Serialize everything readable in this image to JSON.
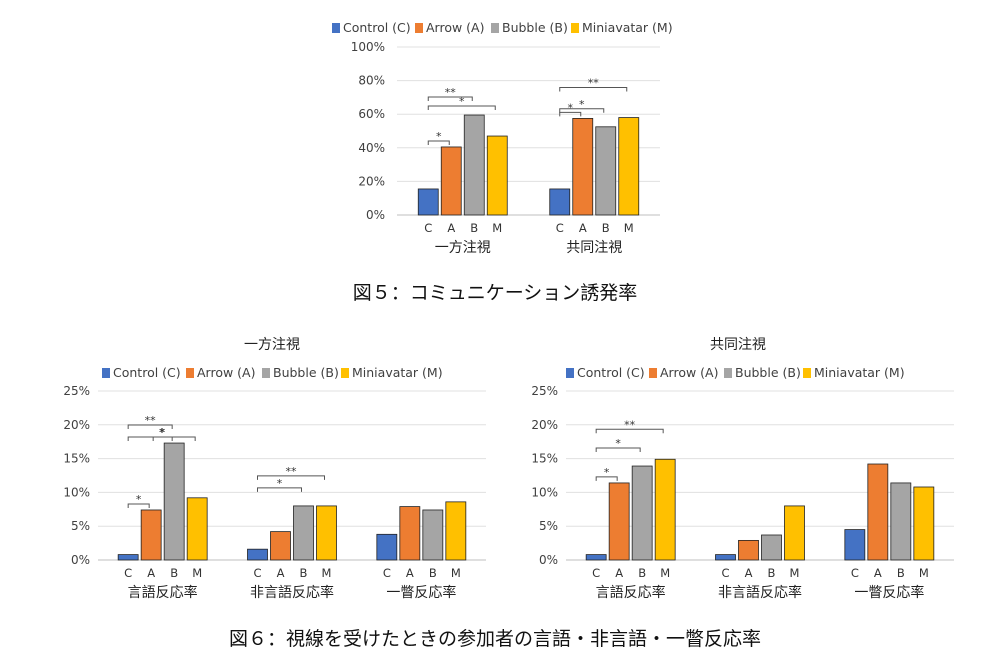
{
  "colors": {
    "C": "#4472C4",
    "A": "#ED7D31",
    "B": "#A5A5A5",
    "M": "#FFC000"
  },
  "figure5": {
    "caption": "図５：コミュニケーション誘発率",
    "chart_data": {
      "type": "bar",
      "legend": [
        "Control (C)",
        "Arrow (A)",
        "Bubble (B)",
        "Miniavatar (M)"
      ],
      "legend_position": "top",
      "group_labels": [
        "一方注視",
        "共同注視"
      ],
      "bar_labels": [
        "C",
        "A",
        "B",
        "M"
      ],
      "yticks": [
        "0%",
        "20%",
        "40%",
        "60%",
        "80%",
        "100%"
      ],
      "ylim": [
        0,
        100
      ],
      "grid": true,
      "series": [
        {
          "name": "Control (C)",
          "values": [
            15.5,
            15.5
          ]
        },
        {
          "name": "Arrow (A)",
          "values": [
            40.5,
            57.5
          ]
        },
        {
          "name": "Bubble (B)",
          "values": [
            59.5,
            52.5
          ]
        },
        {
          "name": "Miniavatar (M)",
          "values": [
            47,
            58
          ]
        }
      ],
      "annotations": [
        {
          "group": 0,
          "from": 0,
          "to": 1,
          "label": "*"
        },
        {
          "group": 0,
          "from": 0,
          "to": 2,
          "label": "**"
        },
        {
          "group": 0,
          "from": 0,
          "to": 3,
          "label": "*"
        },
        {
          "group": 1,
          "from": 0,
          "to": 1,
          "label": "*"
        },
        {
          "group": 1,
          "from": 0,
          "to": 2,
          "label": "*"
        },
        {
          "group": 1,
          "from": 0,
          "to": 3,
          "label": "**"
        }
      ]
    }
  },
  "figure6": {
    "caption": "図６：視線を受けたときの参加者の言語・非言語・一瞥反応率",
    "chart_data": [
      {
        "type": "bar",
        "title": "一方注視",
        "legend": [
          "Control (C)",
          "Arrow (A)",
          "Bubble (B)",
          "Miniavatar (M)"
        ],
        "legend_position": "top",
        "group_labels": [
          "言語反応率",
          "非言語反応率",
          "一瞥反応率"
        ],
        "bar_labels": [
          "C",
          "A",
          "B",
          "M"
        ],
        "yticks": [
          "0%",
          "5%",
          "10%",
          "15%",
          "20%",
          "25%"
        ],
        "ylim": [
          0,
          25
        ],
        "grid": true,
        "series": [
          {
            "name": "Control (C)",
            "values": [
              0.8,
              1.6,
              3.8
            ]
          },
          {
            "name": "Arrow (A)",
            "values": [
              7.4,
              4.2,
              7.9
            ]
          },
          {
            "name": "Bubble (B)",
            "values": [
              17.3,
              8.0,
              7.4
            ]
          },
          {
            "name": "Miniavatar (M)",
            "values": [
              9.2,
              8.0,
              8.6
            ]
          }
        ],
        "annotations": [
          {
            "group": 0,
            "from": 0,
            "to": 1,
            "label": "*"
          },
          {
            "group": 0,
            "from": 1,
            "to": 2,
            "label": "*"
          },
          {
            "group": 0,
            "from": 0,
            "to": 2,
            "label": "**"
          },
          {
            "group": 0,
            "from": 0,
            "to": 3,
            "label": "*"
          },
          {
            "group": 1,
            "from": 0,
            "to": 2,
            "label": "*"
          },
          {
            "group": 1,
            "from": 0,
            "to": 3,
            "label": "**"
          }
        ]
      },
      {
        "type": "bar",
        "title": "共同注視",
        "legend": [
          "Control (C)",
          "Arrow (A)",
          "Bubble (B)",
          "Miniavatar (M)"
        ],
        "legend_position": "top",
        "group_labels": [
          "言語反応率",
          "非言語反応率",
          "一瞥反応率"
        ],
        "bar_labels": [
          "C",
          "A",
          "B",
          "M"
        ],
        "yticks": [
          "0%",
          "5%",
          "10%",
          "15%",
          "20%",
          "25%"
        ],
        "ylim": [
          0,
          25
        ],
        "grid": true,
        "series": [
          {
            "name": "Control (C)",
            "values": [
              0.8,
              0.8,
              4.5
            ]
          },
          {
            "name": "Arrow (A)",
            "values": [
              11.4,
              2.9,
              14.2
            ]
          },
          {
            "name": "Bubble (B)",
            "values": [
              13.9,
              3.7,
              11.4
            ]
          },
          {
            "name": "Miniavatar (M)",
            "values": [
              14.9,
              8.0,
              10.8
            ]
          }
        ],
        "annotations": [
          {
            "group": 0,
            "from": 0,
            "to": 1,
            "label": "*"
          },
          {
            "group": 0,
            "from": 0,
            "to": 2,
            "label": "*"
          },
          {
            "group": 0,
            "from": 0,
            "to": 3,
            "label": "**"
          }
        ]
      }
    ]
  }
}
